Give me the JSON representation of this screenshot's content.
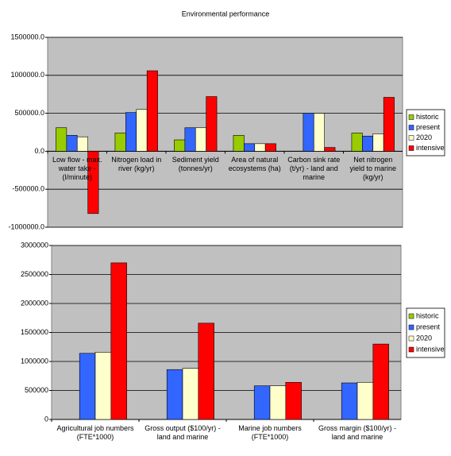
{
  "chart_data": [
    {
      "type": "bar",
      "title": "Environmental performance",
      "categories": [
        "Low flow - max. water take - (l/minute)",
        "Nitrogen load in river (kg/yr)",
        "Sediment yield (tonnes/yr)",
        "Area of natural ecosystems (ha)",
        "Carbon sink rate (t/yr) - land and marine",
        "Net nitrogen yield to marine (kg/yr)"
      ],
      "series": [
        {
          "name": "historic",
          "color": "#99cc00",
          "values": [
            310000,
            240000,
            150000,
            210000,
            0,
            240000
          ]
        },
        {
          "name": "present",
          "color": "#3366ff",
          "values": [
            210000,
            510000,
            310000,
            100000,
            500000,
            200000
          ]
        },
        {
          "name": "2020",
          "color": "#ffffcc",
          "values": [
            190000,
            550000,
            310000,
            100000,
            500000,
            230000
          ]
        },
        {
          "name": "intensive",
          "color": "#ff0000",
          "values": [
            -820000,
            1060000,
            720000,
            100000,
            50000,
            710000
          ]
        }
      ],
      "ylim": [
        -1000000,
        1500000
      ],
      "yticks": [
        {
          "value": -1000000,
          "label": "-1000000.0"
        },
        {
          "value": -500000,
          "label": "-500000.0"
        },
        {
          "value": 0,
          "label": "0.0"
        },
        {
          "value": 500000,
          "label": "500000.0"
        },
        {
          "value": 1000000,
          "label": "1000000.0"
        },
        {
          "value": 1500000,
          "label": "1500000.0"
        }
      ],
      "grid": true,
      "legend": "right"
    },
    {
      "type": "bar",
      "categories": [
        "Agricultural job numbers (FTE*1000)",
        "Gross output ($100/yr) - land and marine",
        "Marine job numbers (FTE*1000)",
        "Gross margin ($100/yr) - land and marine"
      ],
      "series": [
        {
          "name": "historic",
          "color": "#99cc00",
          "values": [
            null,
            null,
            null,
            null
          ]
        },
        {
          "name": "present",
          "color": "#3366ff",
          "values": [
            1140000,
            860000,
            580000,
            630000
          ]
        },
        {
          "name": "2020",
          "color": "#ffffcc",
          "values": [
            1160000,
            880000,
            580000,
            640000
          ]
        },
        {
          "name": "intensive",
          "color": "#ff0000",
          "values": [
            2700000,
            1660000,
            640000,
            1300000
          ]
        }
      ],
      "ylim": [
        0,
        3000000
      ],
      "yticks": [
        0,
        500000,
        1000000,
        1500000,
        2000000,
        2500000,
        3000000
      ],
      "grid": true,
      "legend": "right"
    }
  ]
}
